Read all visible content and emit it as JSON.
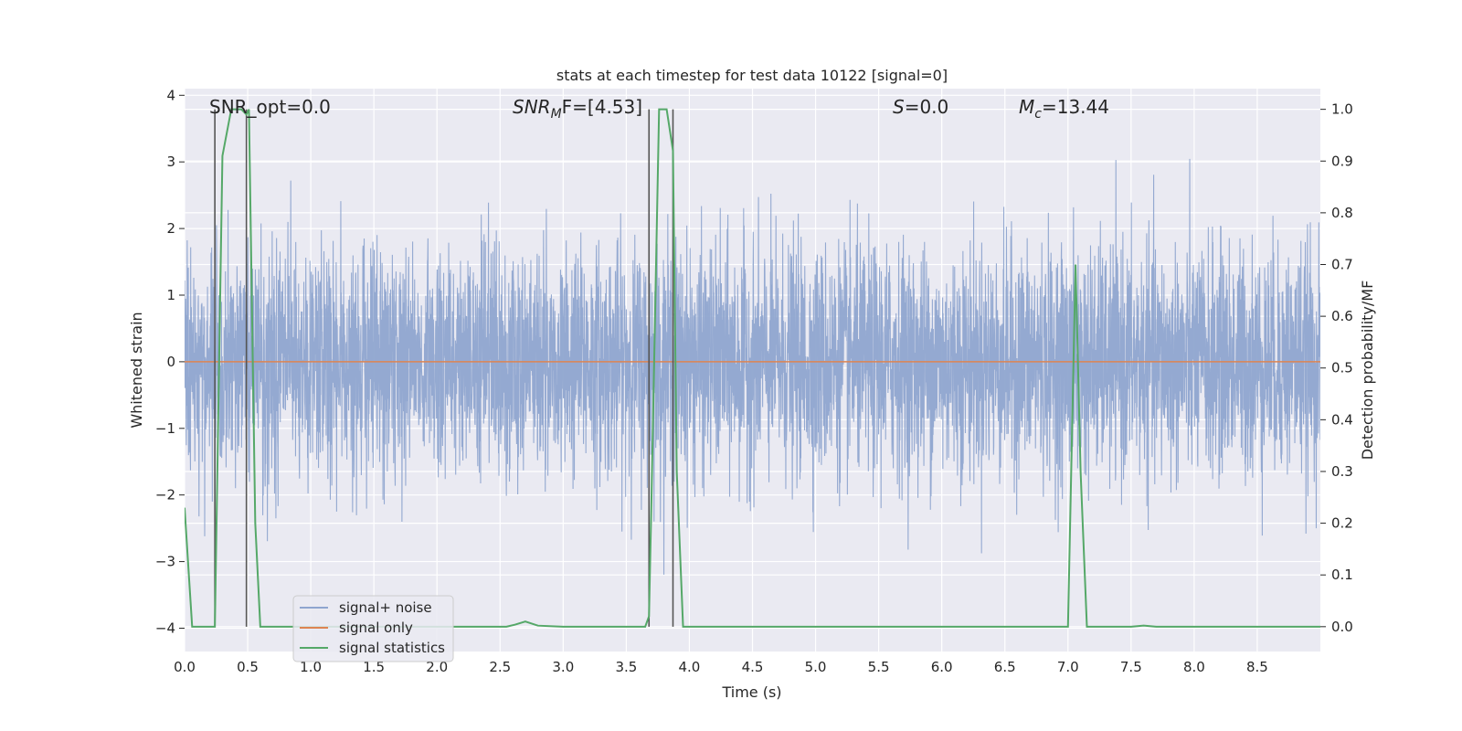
{
  "chart_data": {
    "type": "line",
    "title": "stats at each timestep for test data 10122 [signal=0]",
    "xlabel": "Time (s)",
    "ylabel": "Whitened strain",
    "y2label": "Detection probability/MF",
    "xlim": [
      0.0,
      9.0
    ],
    "ylim": [
      -4.35,
      4.1
    ],
    "y2lim": [
      -0.048,
      1.04
    ],
    "grid": true,
    "legend_position": "lower-left",
    "x_ticks": [
      "0.0",
      "0.5",
      "1.0",
      "1.5",
      "2.0",
      "2.5",
      "3.0",
      "3.5",
      "4.0",
      "4.5",
      "5.0",
      "5.5",
      "6.0",
      "6.5",
      "7.0",
      "7.5",
      "8.0",
      "8.5"
    ],
    "y_ticks": [
      "4",
      "3",
      "2",
      "1",
      "0",
      "−1",
      "−2",
      "−3",
      "−4"
    ],
    "y2_ticks": [
      "1.0",
      "0.9",
      "0.8",
      "0.7",
      "0.6",
      "0.5",
      "0.4",
      "0.3",
      "0.2",
      "0.1",
      "0.0"
    ],
    "annotations": {
      "snr_opt": "SNR_opt=0.0",
      "snr_mf_main": "SNR",
      "snr_mf_sub": "M",
      "snr_mf_rest": "F=[4.53]",
      "s_main": "S",
      "s_rest": "=0.0",
      "mc_main": "M",
      "mc_sub": "c",
      "mc_rest": "=13.44"
    },
    "series": [
      {
        "name": "signal+ noise",
        "color": "#8fa5cf",
        "description_of_values": "noise-dominated whitened strain, roughly within ±2.5 with spikes to about ±4",
        "envelope_y": [
          -4.0,
          3.7
        ]
      },
      {
        "name": "signal only",
        "color": "#dd8452",
        "x": [
          0.0,
          9.0
        ],
        "y": [
          0.0,
          0.0
        ]
      },
      {
        "name": "signal statistics",
        "color": "#55a868",
        "axis": "right",
        "x": [
          0.0,
          0.06,
          0.2,
          0.24,
          0.3,
          0.37,
          0.45,
          0.49,
          0.51,
          0.56,
          0.6,
          1.0,
          2.0,
          2.55,
          2.62,
          2.7,
          2.8,
          3.0,
          3.5,
          3.65,
          3.68,
          3.7,
          3.76,
          3.82,
          3.87,
          3.9,
          3.95,
          4.0,
          5.0,
          6.0,
          7.0,
          7.06,
          7.1,
          7.15,
          7.5,
          7.6,
          7.7,
          8.0,
          9.0
        ],
        "y": [
          0.23,
          0.0,
          0.0,
          0.0,
          0.91,
          1.0,
          1.0,
          0.99,
          1.0,
          0.2,
          0.0,
          0.0,
          0.0,
          0.0,
          0.004,
          0.01,
          0.002,
          0.0,
          0.0,
          0.0,
          0.02,
          0.25,
          1.0,
          1.0,
          0.92,
          0.3,
          0.0,
          0.0,
          0.0,
          0.0,
          0.0,
          0.7,
          0.3,
          0.0,
          0.0,
          0.002,
          0.0,
          0.0,
          0.0
        ]
      }
    ],
    "vertical_lines": [
      {
        "x": 0.24,
        "color": "#555555"
      },
      {
        "x": 0.49,
        "color": "#555555"
      },
      {
        "x": 3.68,
        "color": "#555555"
      },
      {
        "x": 3.87,
        "color": "#555555"
      }
    ]
  }
}
